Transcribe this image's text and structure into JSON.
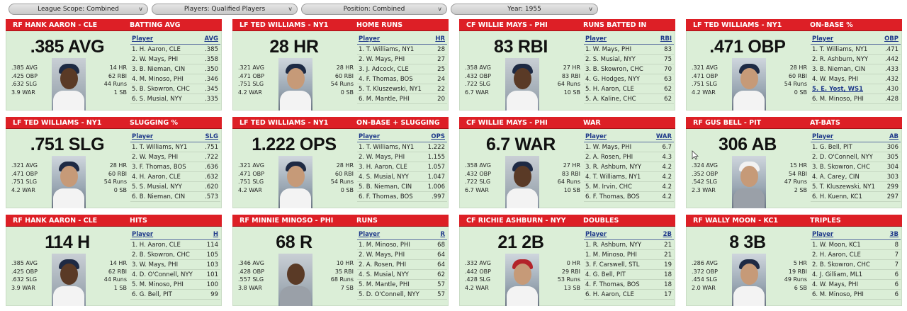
{
  "filters": [
    {
      "label": "League Scope: Combined"
    },
    {
      "label": "Players: Qualified Players"
    },
    {
      "label": "Position: Combined"
    },
    {
      "label": "Year: 1955"
    }
  ],
  "icons": {
    "chevron": "chevron-down-icon",
    "cursor": "mouse-pointer-icon"
  },
  "colors": {
    "header": "#dd1f26",
    "panel": "#dbeed7",
    "link": "#1f3a8a"
  },
  "cards": [
    {
      "player": "RF HANK AARON - CLE",
      "category": "BATTING AVG",
      "big": ".385 AVG",
      "left": [
        ".385 AVG",
        ".425 OBP",
        ".632 SLG",
        "3.9 WAR"
      ],
      "right": [
        "14 HR",
        "62 RBI",
        "44 Runs",
        "1 SB"
      ],
      "photo": {
        "skin": "dark",
        "cap": "navy",
        "shirt": "white"
      },
      "col_player": "Player",
      "col_stat": "AVG",
      "rows": [
        {
          "name": "1. H. Aaron, CLE",
          "val": ".385"
        },
        {
          "name": "2. W. Mays, PHI",
          "val": ".358"
        },
        {
          "name": "3. B. Nieman, CIN",
          "val": ".350"
        },
        {
          "name": "4. M. Minoso, PHI",
          "val": ".346"
        },
        {
          "name": "5. B. Skowron, CHC",
          "val": ".345"
        },
        {
          "name": "6. S. Musial, NYY",
          "val": ".335"
        }
      ]
    },
    {
      "player": "LF TED WILLIAMS - NY1",
      "category": "HOME RUNS",
      "big": "28 HR",
      "left": [
        ".321 AVG",
        ".471 OBP",
        ".751 SLG",
        "4.2 WAR"
      ],
      "right": [
        "28 HR",
        "60 RBI",
        "54 Runs",
        "0 SB"
      ],
      "photo": {
        "skin": "light",
        "cap": "navy",
        "shirt": "white"
      },
      "col_player": "Player",
      "col_stat": "HR",
      "rows": [
        {
          "name": "1. T. Williams, NY1",
          "val": "28"
        },
        {
          "name": "2. W. Mays, PHI",
          "val": "27"
        },
        {
          "name": "3. J. Adcock, CLE",
          "val": "25"
        },
        {
          "name": "4. F. Thomas, BOS",
          "val": "24"
        },
        {
          "name": "5. T. Kluszewski, NY1",
          "val": "22"
        },
        {
          "name": "6. M. Mantle, PHI",
          "val": "20"
        }
      ]
    },
    {
      "player": "CF WILLIE MAYS - PHI",
      "category": "RUNS BATTED IN",
      "big": "83 RBI",
      "left": [
        ".358 AVG",
        ".432 OBP",
        ".722 SLG",
        "6.7 WAR"
      ],
      "right": [
        "27 HR",
        "83 RBI",
        "64 Runs",
        "10 SB"
      ],
      "photo": {
        "skin": "dark",
        "cap": "navy",
        "shirt": "white"
      },
      "col_player": "Player",
      "col_stat": "RBI",
      "rows": [
        {
          "name": "1. W. Mays, PHI",
          "val": "83"
        },
        {
          "name": "2. S. Musial, NYY",
          "val": "75"
        },
        {
          "name": "3. B. Skowron, CHC",
          "val": "70"
        },
        {
          "name": "4. G. Hodges, NYY",
          "val": "63"
        },
        {
          "name": "5. H. Aaron, CLE",
          "val": "62"
        },
        {
          "name": "5. A. Kaline, CHC",
          "val": "62"
        }
      ]
    },
    {
      "player": "LF TED WILLIAMS - NY1",
      "category": "ON-BASE %",
      "big": ".471 OBP",
      "left": [
        ".321 AVG",
        ".471 OBP",
        ".751 SLG",
        "4.2 WAR"
      ],
      "right": [
        "28 HR",
        "60 RBI",
        "54 Runs",
        "0 SB"
      ],
      "photo": {
        "skin": "light",
        "cap": "navy",
        "shirt": "white"
      },
      "col_player": "Player",
      "col_stat": "OBP",
      "rows": [
        {
          "name": "1. T. Williams, NY1",
          "val": ".471"
        },
        {
          "name": "2. R. Ashburn, NYY",
          "val": ".442"
        },
        {
          "name": "3. B. Nieman, CIN",
          "val": ".433"
        },
        {
          "name": "4. W. Mays, PHI",
          "val": ".432"
        },
        {
          "name": "5. E. Yost, WS1",
          "val": ".430",
          "link": true
        },
        {
          "name": "6. M. Minoso, PHI",
          "val": ".428"
        }
      ]
    },
    {
      "player": "LF TED WILLIAMS - NY1",
      "category": "SLUGGING %",
      "big": ".751 SLG",
      "left": [
        ".321 AVG",
        ".471 OBP",
        ".751 SLG",
        "4.2 WAR"
      ],
      "right": [
        "28 HR",
        "60 RBI",
        "54 Runs",
        "0 SB"
      ],
      "photo": {
        "skin": "light",
        "cap": "navy",
        "shirt": "white"
      },
      "col_player": "Player",
      "col_stat": "SLG",
      "rows": [
        {
          "name": "1. T. Williams, NY1",
          "val": ".751"
        },
        {
          "name": "2. W. Mays, PHI",
          "val": ".722"
        },
        {
          "name": "3. F. Thomas, BOS",
          "val": ".636"
        },
        {
          "name": "4. H. Aaron, CLE",
          "val": ".632"
        },
        {
          "name": "5. S. Musial, NYY",
          "val": ".620"
        },
        {
          "name": "6. B. Nieman, CIN",
          "val": ".573"
        }
      ]
    },
    {
      "player": "LF TED WILLIAMS - NY1",
      "category": "ON-BASE + SLUGGING",
      "big": "1.222 OPS",
      "left": [
        ".321 AVG",
        ".471 OBP",
        ".751 SLG",
        "4.2 WAR"
      ],
      "right": [
        "28 HR",
        "60 RBI",
        "54 Runs",
        "0 SB"
      ],
      "photo": {
        "skin": "light",
        "cap": "navy",
        "shirt": "white"
      },
      "col_player": "Player",
      "col_stat": "OPS",
      "rows": [
        {
          "name": "1. T. Williams, NY1",
          "val": "1.222"
        },
        {
          "name": "2. W. Mays, PHI",
          "val": "1.155"
        },
        {
          "name": "3. H. Aaron, CLE",
          "val": "1.057"
        },
        {
          "name": "4. S. Musial, NYY",
          "val": "1.047"
        },
        {
          "name": "5. B. Nieman, CIN",
          "val": "1.006"
        },
        {
          "name": "6. F. Thomas, BOS",
          "val": ".997"
        }
      ]
    },
    {
      "player": "CF WILLIE MAYS - PHI",
      "category": "WAR",
      "big": "6.7 WAR",
      "left": [
        ".358 AVG",
        ".432 OBP",
        ".722 SLG",
        "6.7 WAR"
      ],
      "right": [
        "27 HR",
        "83 RBI",
        "64 Runs",
        "10 SB"
      ],
      "photo": {
        "skin": "dark",
        "cap": "navy",
        "shirt": "white"
      },
      "col_player": "Player",
      "col_stat": "WAR",
      "rows": [
        {
          "name": "1. W. Mays, PHI",
          "val": "6.7"
        },
        {
          "name": "2. A. Rosen, PHI",
          "val": "4.3"
        },
        {
          "name": "3. R. Ashburn, NYY",
          "val": "4.2"
        },
        {
          "name": "4. T. Williams, NY1",
          "val": "4.2"
        },
        {
          "name": "5. M. Irvin, CHC",
          "val": "4.2"
        },
        {
          "name": "6. F. Thomas, BOS",
          "val": "4.2"
        }
      ]
    },
    {
      "player": "RF GUS BELL - PIT",
      "category": "AT-BATS",
      "big": "306 AB",
      "left": [
        ".324 AVG",
        ".352 OBP",
        ".542 SLG",
        "2.3 WAR"
      ],
      "right": [
        "15 HR",
        "54 RBI",
        "47 Runs",
        "2 SB"
      ],
      "photo": {
        "skin": "light",
        "cap": "white",
        "shirt": "grey"
      },
      "col_player": "Player",
      "col_stat": "AB",
      "rows": [
        {
          "name": "1. G. Bell, PIT",
          "val": "306"
        },
        {
          "name": "2. D. O'Connell, NYY",
          "val": "305"
        },
        {
          "name": "3. B. Skowron, CHC",
          "val": "304"
        },
        {
          "name": "4. A. Carey, CIN",
          "val": "303"
        },
        {
          "name": "5. T. Kluszewski, NY1",
          "val": "299"
        },
        {
          "name": "6. H. Kuenn, KC1",
          "val": "297"
        }
      ]
    },
    {
      "player": "RF HANK AARON - CLE",
      "category": "HITS",
      "big": "114 H",
      "left": [
        ".385 AVG",
        ".425 OBP",
        ".632 SLG",
        "3.9 WAR"
      ],
      "right": [
        "14 HR",
        "62 RBI",
        "44 Runs",
        "1 SB"
      ],
      "photo": {
        "skin": "dark",
        "cap": "navy",
        "shirt": "white"
      },
      "col_player": "Player",
      "col_stat": "H",
      "rows": [
        {
          "name": "1. H. Aaron, CLE",
          "val": "114"
        },
        {
          "name": "2. B. Skowron, CHC",
          "val": "105"
        },
        {
          "name": "3. W. Mays, PHI",
          "val": "103"
        },
        {
          "name": "4. D. O'Connell, NYY",
          "val": "101"
        },
        {
          "name": "5. M. Minoso, PHI",
          "val": "100"
        },
        {
          "name": "6. G. Bell, PIT",
          "val": "99"
        }
      ]
    },
    {
      "player": "RF MINNIE MINOSO - PHI",
      "category": "RUNS",
      "big": "68 R",
      "left": [
        ".346 AVG",
        ".428 OBP",
        ".557 SLG",
        "3.8 WAR"
      ],
      "right": [
        "10 HR",
        "35 RBI",
        "68 Runs",
        "7 SB"
      ],
      "photo": {
        "skin": "dark",
        "cap": "none",
        "shirt": "grey"
      },
      "col_player": "Player",
      "col_stat": "R",
      "rows": [
        {
          "name": "1. M. Minoso, PHI",
          "val": "68"
        },
        {
          "name": "2. W. Mays, PHI",
          "val": "64"
        },
        {
          "name": "2. A. Rosen, PHI",
          "val": "64"
        },
        {
          "name": "4. S. Musial, NYY",
          "val": "62"
        },
        {
          "name": "5. M. Mantle, PHI",
          "val": "57"
        },
        {
          "name": "5. D. O'Connell, NYY",
          "val": "57"
        }
      ]
    },
    {
      "player": "CF RICHIE ASHBURN - NYY",
      "category": "DOUBLES",
      "big": "21 2B",
      "left": [
        ".332 AVG",
        ".442 OBP",
        ".428 SLG",
        "4.2 WAR"
      ],
      "right": [
        "0 HR",
        "29 RBI",
        "53 Runs",
        "13 SB"
      ],
      "photo": {
        "skin": "light",
        "cap": "red",
        "shirt": "white"
      },
      "col_player": "Player",
      "col_stat": "2B",
      "rows": [
        {
          "name": "1. R. Ashburn, NYY",
          "val": "21"
        },
        {
          "name": "1. M. Minoso, PHI",
          "val": "21"
        },
        {
          "name": "3. F. Carswell, STL",
          "val": "19"
        },
        {
          "name": "4. G. Bell, PIT",
          "val": "18"
        },
        {
          "name": "4. F. Thomas, BOS",
          "val": "18"
        },
        {
          "name": "6. H. Aaron, CLE",
          "val": "17"
        }
      ]
    },
    {
      "player": "RF WALLY MOON - KC1",
      "category": "TRIPLES",
      "big": "8 3B",
      "left": [
        ".286 AVG",
        ".372 OBP",
        ".454 SLG",
        "2.0 WAR"
      ],
      "right": [
        "5 HR",
        "19 RBI",
        "49 Runs",
        "6 SB"
      ],
      "photo": {
        "skin": "light",
        "cap": "navy",
        "shirt": "white"
      },
      "col_player": "Player",
      "col_stat": "3B",
      "rows": [
        {
          "name": "1. W. Moon, KC1",
          "val": "8"
        },
        {
          "name": "2. H. Aaron, CLE",
          "val": "7"
        },
        {
          "name": "2. B. Skowron, CHC",
          "val": "7"
        },
        {
          "name": "4. J. Gilliam, ML1",
          "val": "6"
        },
        {
          "name": "4. W. Mays, PHI",
          "val": "6"
        },
        {
          "name": "6. M. Minoso, PHI",
          "val": "6"
        }
      ]
    }
  ]
}
